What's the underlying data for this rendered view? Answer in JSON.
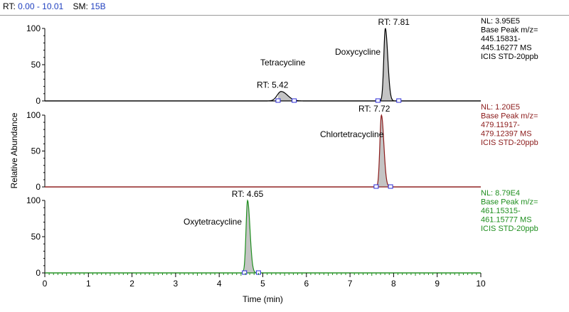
{
  "header": {
    "rt_label": "RT:",
    "rt_value": "0.00 - 10.01",
    "sm_label": "SM:",
    "sm_value": "15B"
  },
  "colors": {
    "trace_black": "#000000",
    "trace_red": "#8b1a1a",
    "trace_green": "#1f8f1f",
    "peak_fill": "#c4c4c4",
    "marker_blue": "#2b2bd6"
  },
  "chart_data": {
    "type": "line",
    "xlabel": "Time (min)",
    "ylabel": "Relative Abundance",
    "xlim": [
      0,
      10
    ],
    "x_ticks": [
      "0",
      "1",
      "2",
      "3",
      "4",
      "5",
      "6",
      "7",
      "8",
      "9",
      "10"
    ],
    "y_ticks": [
      "0",
      "50",
      "100"
    ],
    "ylim": [
      0,
      100
    ],
    "panels": [
      {
        "color": "#000000",
        "info": [
          "NL: 3.95E5",
          "Base Peak m/z=",
          "445.15831-",
          "445.16277  MS",
          "ICIS STD-20ppb"
        ],
        "peaks": [
          {
            "rt": 5.42,
            "height": 13,
            "width": 0.09,
            "rt_label": "RT: 5.42",
            "start": 5.35,
            "end": 5.72
          },
          {
            "rt": 7.81,
            "height": 100,
            "width": 0.035,
            "rt_label": "RT: 7.81",
            "start": 7.64,
            "end": 8.12
          }
        ],
        "annotations": [
          "Tetracycline",
          "Doxycycline"
        ]
      },
      {
        "color": "#8b1a1a",
        "info": [
          "NL: 1.20E5",
          "Base Peak m/z=",
          "479.11917-",
          "479.12397  MS",
          "ICIS STD-20ppb"
        ],
        "peaks": [
          {
            "rt": 7.72,
            "height": 100,
            "width": 0.035,
            "rt_label": "RT: 7.72",
            "start": 7.6,
            "end": 7.93
          }
        ],
        "annotations": [
          "Chlortetracycline"
        ]
      },
      {
        "color": "#1f8f1f",
        "info": [
          "NL: 8.79E4",
          "Base Peak m/z=",
          "461.15315-",
          "461.15777  MS",
          "ICIS STD-20ppb"
        ],
        "peaks": [
          {
            "rt": 4.65,
            "height": 100,
            "width": 0.035,
            "rt_label": "RT: 4.65",
            "start": 4.58,
            "end": 4.9
          }
        ],
        "annotations": [
          "Oxytetracycline"
        ]
      }
    ]
  }
}
